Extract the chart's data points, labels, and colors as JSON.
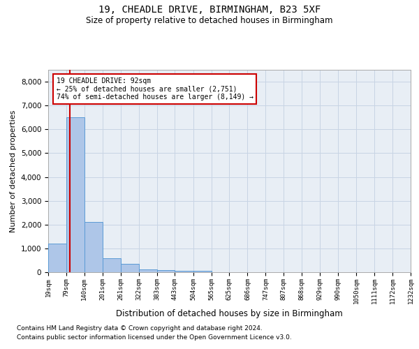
{
  "title1": "19, CHEADLE DRIVE, BIRMINGHAM, B23 5XF",
  "title2": "Size of property relative to detached houses in Birmingham",
  "xlabel": "Distribution of detached houses by size in Birmingham",
  "ylabel": "Number of detached properties",
  "footnote1": "Contains HM Land Registry data © Crown copyright and database right 2024.",
  "footnote2": "Contains public sector information licensed under the Open Government Licence v3.0.",
  "annotation_line1": "19 CHEADLE DRIVE: 92sqm",
  "annotation_line2": "← 25% of detached houses are smaller (2,751)",
  "annotation_line3": "74% of semi-detached houses are larger (8,149) →",
  "property_size_sqm": 92,
  "bar_edges": [
    19,
    79,
    140,
    201,
    261,
    322,
    383,
    443,
    504,
    565,
    625,
    686,
    747,
    807,
    868,
    929,
    990,
    1050,
    1111,
    1172,
    1232
  ],
  "bar_heights": [
    1200,
    6500,
    2100,
    600,
    350,
    130,
    75,
    50,
    65,
    0,
    0,
    0,
    0,
    0,
    0,
    0,
    0,
    0,
    0,
    0
  ],
  "bar_color": "#aec6e8",
  "bar_edge_color": "#5b9bd5",
  "vline_color": "#cc0000",
  "annotation_box_edge_color": "#cc0000",
  "bg_plot": "#e8eef5",
  "bg_fig": "#ffffff",
  "grid_color": "#c8d4e4",
  "ylim_max": 8500,
  "yticks": [
    0,
    1000,
    2000,
    3000,
    4000,
    5000,
    6000,
    7000,
    8000
  ]
}
